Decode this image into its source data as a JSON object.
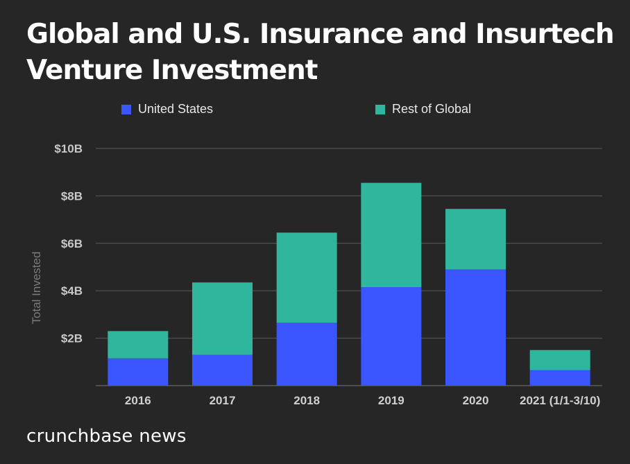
{
  "chart_data": {
    "type": "bar",
    "stacked": true,
    "title": "Global and U.S. Insurance and Insurtech Venture Investment",
    "ylabel": "Total Invested",
    "xlabel": "",
    "categories": [
      "2016",
      "2017",
      "2018",
      "2019",
      "2020",
      "2021 (1/1-3/10)"
    ],
    "series": [
      {
        "name": "United States",
        "color": "#3b55ff",
        "values": [
          1.15,
          1.3,
          2.65,
          4.15,
          4.9,
          0.65
        ]
      },
      {
        "name": "Rest of Global",
        "color": "#2fb69c",
        "values": [
          1.15,
          3.05,
          3.8,
          4.4,
          2.55,
          0.85
        ]
      }
    ],
    "yticks": [
      {
        "value": 2,
        "label": "$2B"
      },
      {
        "value": 4,
        "label": "$4B"
      },
      {
        "value": 6,
        "label": "$6B"
      },
      {
        "value": 8,
        "label": "$8B"
      },
      {
        "value": 10,
        "label": "$10B"
      }
    ],
    "ylim": [
      0,
      10
    ],
    "grid": true,
    "legend_position": "top"
  },
  "footer": {
    "brand": "crunchbase news"
  }
}
